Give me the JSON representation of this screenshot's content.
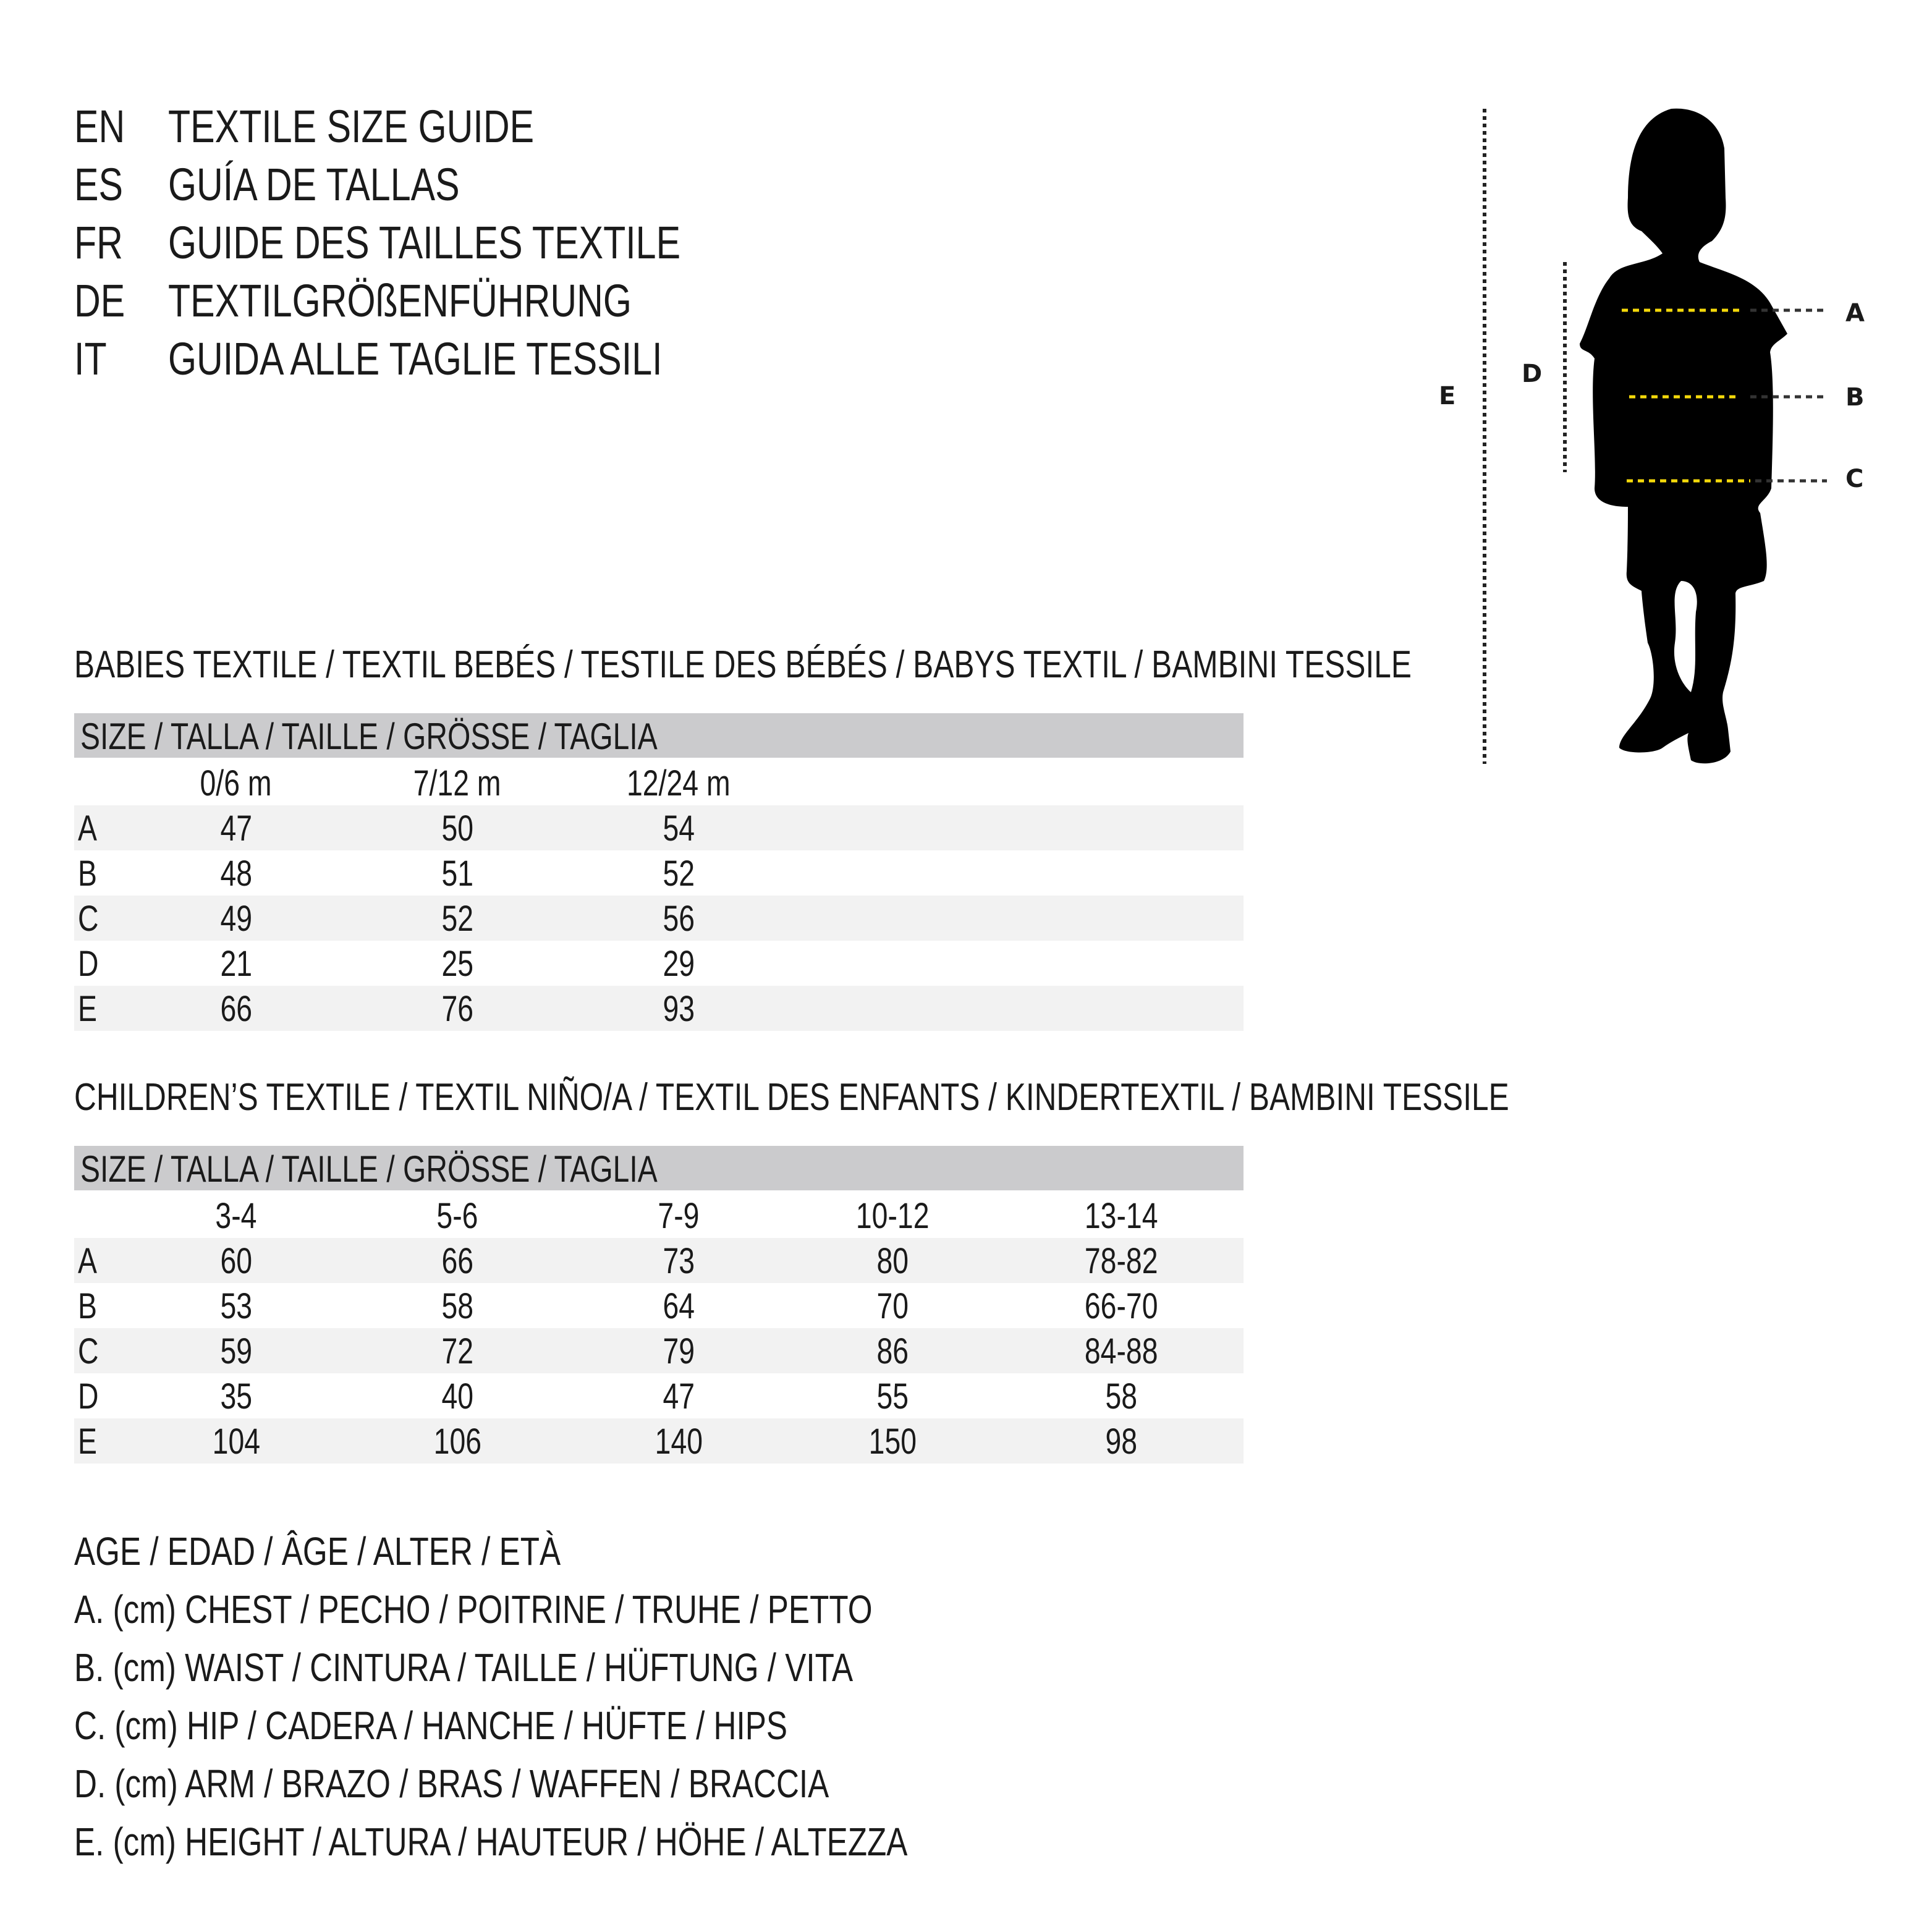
{
  "titles": [
    {
      "code": "EN",
      "text": "TEXTILE SIZE GUIDE"
    },
    {
      "code": "ES",
      "text": "GUÍA DE TALLAS"
    },
    {
      "code": "FR",
      "text": "GUIDE DES TAILLES TEXTILE"
    },
    {
      "code": "DE",
      "text": "TEXTILGRÖßENFÜHRUNG"
    },
    {
      "code": "IT",
      "text": "GUIDA ALLE TAGLIE TESSILI"
    }
  ],
  "figure": {
    "labels": {
      "A": "A",
      "B": "B",
      "C": "C",
      "D": "D",
      "E": "E"
    },
    "colors": {
      "silhouette": "#000000",
      "measure_line": "#f5d90a",
      "guide_line": "#222222"
    }
  },
  "babies": {
    "heading": "BABIES TEXTILE / TEXTIL BEBÉS / TESTILE DES BÉBÉS / BABYS TEXTIL / BAMBINI TESSILE",
    "size_header": "SIZE / TALLA / TAILLE / GRÖSSE / TAGLIA",
    "columns": [
      "0/6 m",
      "7/12 m",
      "12/24 m"
    ],
    "rows": [
      {
        "label": "A",
        "values": [
          "47",
          "50",
          "54"
        ]
      },
      {
        "label": "B",
        "values": [
          "48",
          "51",
          "52"
        ]
      },
      {
        "label": "C",
        "values": [
          "49",
          "52",
          "56"
        ]
      },
      {
        "label": "D",
        "values": [
          "21",
          "25",
          "29"
        ]
      },
      {
        "label": "E",
        "values": [
          "66",
          "76",
          "93"
        ]
      }
    ]
  },
  "children": {
    "heading": "CHILDREN’S TEXTILE / TEXTIL NIÑO/A / TEXTIL DES ENFANTS / KINDERTEXTIL / BAMBINI TESSILE",
    "size_header": "SIZE / TALLA / TAILLE / GRÖSSE / TAGLIA",
    "columns": [
      "3-4",
      "5-6",
      "7-9",
      "10-12",
      "13-14"
    ],
    "rows": [
      {
        "label": "A",
        "values": [
          "60",
          "66",
          "73",
          "80",
          "78-82"
        ]
      },
      {
        "label": "B",
        "values": [
          "53",
          "58",
          "64",
          "70",
          "66-70"
        ]
      },
      {
        "label": "C",
        "values": [
          "59",
          "72",
          "79",
          "86",
          "84-88"
        ]
      },
      {
        "label": "D",
        "values": [
          "35",
          "40",
          "47",
          "55",
          "58"
        ]
      },
      {
        "label": "E",
        "values": [
          "104",
          "106",
          "140",
          "150",
          "98"
        ]
      }
    ]
  },
  "legend": [
    "AGE / EDAD / ÂGE / ALTER / ETÀ",
    "A. (cm) CHEST / PECHO / POITRINE / TRUHE / PETTO",
    "B. (cm) WAIST / CINTURA / TAILLE / HÜFTUNG / VITA",
    "C. (cm) HIP / CADERA / HANCHE / HÜFTE / HIPS",
    "D. (cm) ARM / BRAZO / BRAS / WAFFEN / BRACCIA",
    "E. (cm) HEIGHT / ALTURA / HAUTEUR / HÖHE / ALTEZZA"
  ]
}
